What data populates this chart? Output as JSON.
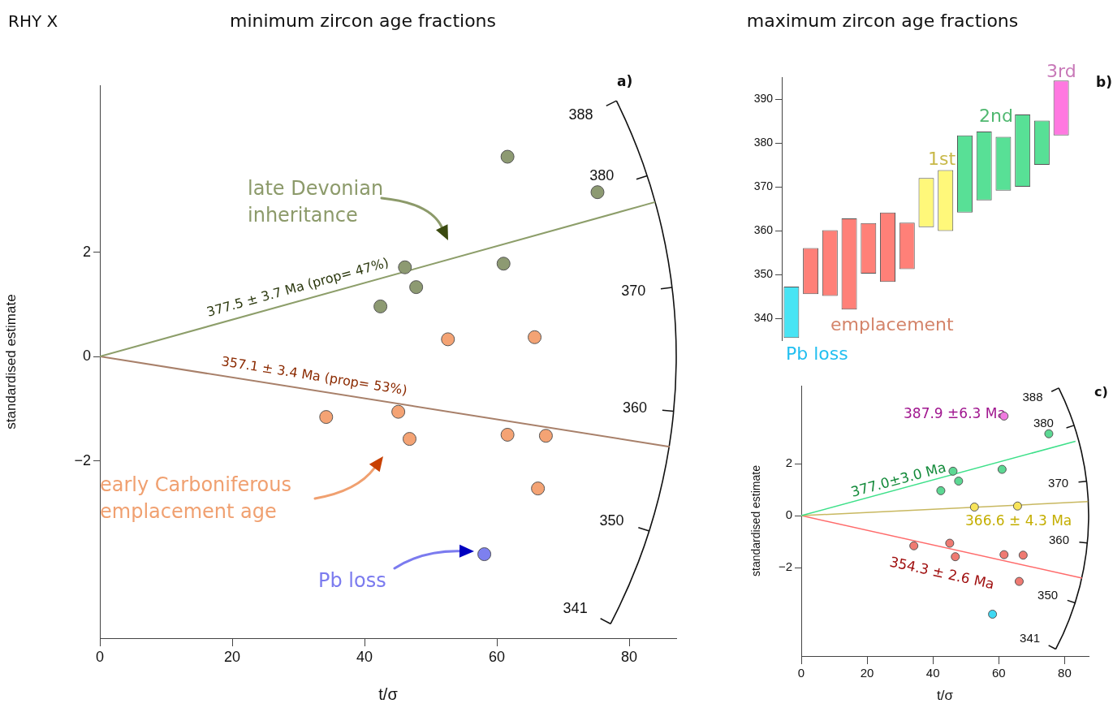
{
  "chart_data": [
    {
      "type": "scatter",
      "title": "minimum zircon age fractions",
      "xlabel": "t/σ",
      "ylabel": "standardised estimate",
      "xlim": [
        0,
        87.1
      ],
      "xticks": [
        0,
        20,
        40,
        60,
        80
      ],
      "ylim": [
        -5.4,
        5.2
      ],
      "yticks": [
        -2,
        0,
        2
      ],
      "marker": "circle",
      "legend": false,
      "grid": false,
      "series": [
        {
          "x": [
            61.6,
            75.2,
            46.1,
            47.8,
            42.4,
            61.0
          ],
          "values": [
            3.83,
            3.15,
            1.71,
            1.33,
            0.96,
            1.78
          ],
          "color": "#8d9a72"
        },
        {
          "x": [
            52.6,
            65.7,
            34.2,
            45.1,
            46.8,
            61.6,
            67.4,
            66.2
          ],
          "values": [
            0.33,
            0.37,
            -1.16,
            -1.06,
            -1.58,
            -1.5,
            -1.52,
            -2.53
          ],
          "color": "#f4a374"
        },
        {
          "x": [
            58.1
          ],
          "values": [
            -3.79
          ],
          "color": "#7d80ef"
        },
        {
          "type": "line",
          "marker": "none",
          "x": [
            0,
            83.9
          ],
          "values": [
            0,
            2.96
          ],
          "color": "#8d9e6a"
        },
        {
          "type": "line",
          "marker": "none",
          "x": [
            0,
            86.1
          ],
          "values": [
            0,
            -1.73
          ],
          "color": "#a8806a"
        }
      ],
      "annotations": [
        "RHY X",
        "a)",
        "late Devonian inheritance",
        "early Carboniferous emplacement age",
        "Pb loss",
        "377.5 ± 3.7 Ma (prop= 47%)",
        "357.1 ± 3.4 Ma (prop= 53%)",
        "388",
        "380",
        "370",
        "360",
        "350",
        "341"
      ]
    },
    {
      "type": "bar",
      "title": "maximum zircon age fractions",
      "categories": [
        null,
        null,
        null,
        null,
        null,
        null,
        null,
        null,
        null,
        null,
        null,
        null,
        null,
        null,
        null
      ],
      "values": [
        11.7,
        10.5,
        15.0,
        20.8,
        11.5,
        15.8,
        10.6,
        11.2,
        13.9,
        17.6,
        15.7,
        12.3,
        16.5,
        10.1,
        12.5
      ],
      "base": [
        335.5,
        345.5,
        345.1,
        342.0,
        350.2,
        348.3,
        351.2,
        360.8,
        359.9,
        364.1,
        366.9,
        369.1,
        370.0,
        375.0,
        381.7
      ],
      "colors": [
        "#48e4f4",
        "#ff8078",
        "#ff8078",
        "#ff8078",
        "#ff8078",
        "#ff8078",
        "#ff8078",
        "#fff87a",
        "#fff87a",
        "#58e096",
        "#58e096",
        "#58e096",
        "#58e096",
        "#58e096",
        "#ff78e0"
      ],
      "ylim": [
        335,
        395
      ],
      "yticks": [
        340,
        350,
        360,
        370,
        380,
        390
      ],
      "tick_labels": "y",
      "legend": false,
      "grid": false,
      "annotations": [
        "Pb loss",
        "emplacement",
        "1st",
        "2nd",
        "3rd",
        "b)"
      ]
    },
    {
      "type": "scatter",
      "xlabel": "t/σ",
      "ylabel": "standardised estimate",
      "xlim": [
        0,
        87.3
      ],
      "xticks": [
        0,
        20,
        40,
        60,
        80
      ],
      "ylim": [
        -5.4,
        5.0
      ],
      "yticks": [
        -2,
        0,
        2
      ],
      "marker": "circle",
      "legend": false,
      "grid": false,
      "series": [
        {
          "x": [
            75.2,
            46.1,
            47.8,
            42.4,
            61.0
          ],
          "values": [
            3.15,
            1.71,
            1.33,
            0.96,
            1.78
          ],
          "color": "#5cd893"
        },
        {
          "x": [
            61.6
          ],
          "values": [
            3.83
          ],
          "color": "#f07ae0"
        },
        {
          "x": [
            52.6,
            65.7
          ],
          "values": [
            0.33,
            0.37
          ],
          "color": "#f8e45a"
        },
        {
          "x": [
            34.2,
            45.1,
            46.8,
            61.6,
            67.4,
            66.2
          ],
          "values": [
            -1.16,
            -1.06,
            -1.58,
            -1.5,
            -1.52,
            -2.53
          ],
          "color": "#ef7a72"
        },
        {
          "x": [
            58.1
          ],
          "values": [
            -3.79
          ],
          "color": "#3fd8f2"
        },
        {
          "type": "line",
          "marker": "none",
          "x": [
            0,
            83.3
          ],
          "values": [
            0,
            2.86
          ],
          "color": "#3ee08a"
        },
        {
          "type": "line",
          "marker": "none",
          "x": [
            0,
            87.1
          ],
          "values": [
            0,
            0.54
          ],
          "color": "#c8b860"
        },
        {
          "type": "line",
          "marker": "none",
          "x": [
            0,
            85.3
          ],
          "values": [
            0,
            -2.4
          ],
          "color": "#ff6b6b"
        }
      ],
      "annotations": [
        "c)",
        "387.9 ±6.3 Ma",
        "366.6 ± 4.3 Ma",
        "377.0±3.0 Ma",
        "354.3 ± 2.6 Ma",
        "388",
        "380",
        "370",
        "360",
        "350",
        "341"
      ]
    }
  ]
}
